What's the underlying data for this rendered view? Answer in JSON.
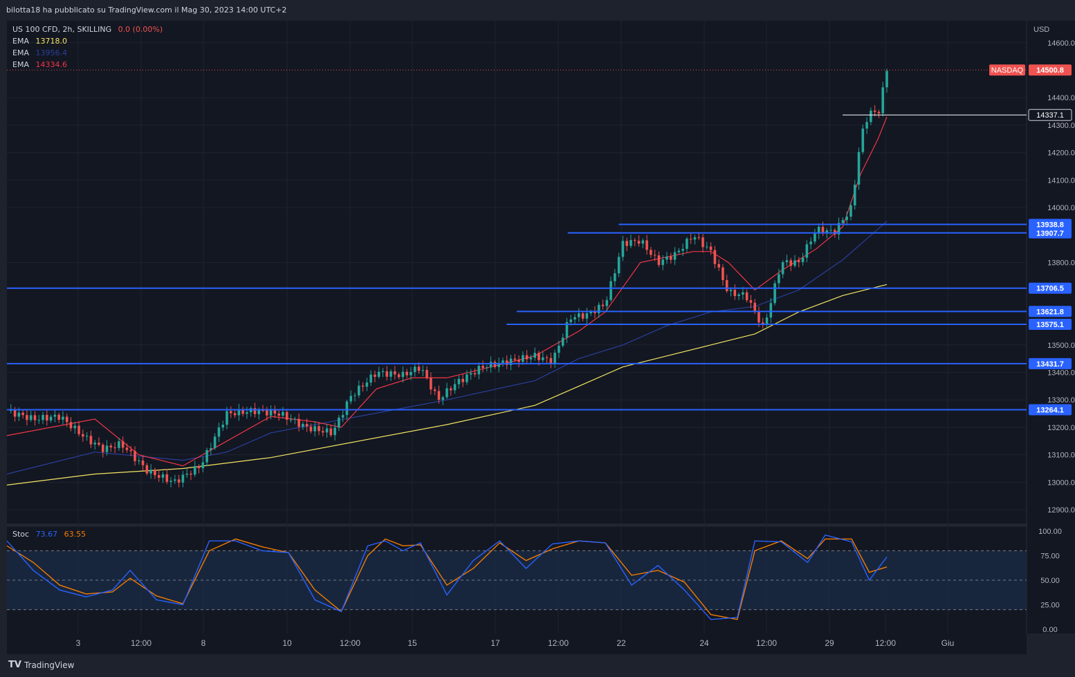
{
  "header": {
    "published_by": "bilotta18 ha pubblicato su TradingView.com il Mag 30, 2023 14:00 UTC+2"
  },
  "legend": {
    "symbol": "US 100 CFD, 2h, SKILLING",
    "change": "0.0 (0.00%)",
    "ema1": {
      "label": "EMA",
      "value": "13718.0",
      "color": "#f5e663"
    },
    "ema2": {
      "label": "EMA",
      "value": "13956.4",
      "color": "#2a3f9a"
    },
    "ema3": {
      "label": "EMA",
      "value": "14334.6",
      "color": "#f23645"
    }
  },
  "stoch_legend": {
    "label": "Stoc",
    "k": "73.67",
    "d": "63.55"
  },
  "footer": {
    "logo": "TradingView"
  },
  "colors": {
    "up": "#26a69a",
    "down": "#ef5350",
    "level": "#2962ff",
    "ema_fast": "#f23645",
    "ema_mid": "#2a3f9a",
    "ema_slow": "#f5e663",
    "stoch_k": "#2962ff",
    "stoch_d": "#f57c00"
  },
  "chart_data": {
    "type": "candlestick",
    "currency": "USD",
    "y_ticks": [
      "14600.0",
      "14400.0",
      "14300.0",
      "14200.0",
      "14100.0",
      "14000.0",
      "13800.0",
      "13500.0",
      "13400.0",
      "13300.0",
      "13200.0",
      "13100.0",
      "13000.0",
      "12900.0"
    ],
    "x_ticks": [
      "3",
      "12:00",
      "8",
      "10",
      "12:00",
      "15",
      "17",
      "12:00",
      "22",
      "24",
      "12:00",
      "29",
      "12:00",
      "Giu"
    ],
    "ylim": [
      12850,
      14680
    ],
    "last_price": {
      "label": "NASDAQ",
      "value": 14500.8
    },
    "marker": {
      "value": 14337.1
    },
    "levels": [
      {
        "value": 13938.8,
        "label": "13938.8",
        "from": 0.6
      },
      {
        "value": 13907.7,
        "label": "13907.7",
        "from": 0.55
      },
      {
        "value": 13706.5,
        "label": "13706.5",
        "from": 0
      },
      {
        "value": 13621.8,
        "label": "13621.8",
        "from": 0.5
      },
      {
        "value": 13575.1,
        "label": "13575.1",
        "from": 0.49
      },
      {
        "value": 13431.7,
        "label": "13431.7",
        "from": 0
      },
      {
        "value": 13264.1,
        "label": "13264.1",
        "from": 0
      }
    ],
    "price_path": [
      [
        0,
        13260
      ],
      [
        0.03,
        13230
      ],
      [
        0.06,
        13240
      ],
      [
        0.09,
        13160
      ],
      [
        0.11,
        13120
      ],
      [
        0.13,
        13140
      ],
      [
        0.16,
        13040
      ],
      [
        0.19,
        13000
      ],
      [
        0.22,
        13060
      ],
      [
        0.25,
        13250
      ],
      [
        0.28,
        13260
      ],
      [
        0.31,
        13250
      ],
      [
        0.34,
        13200
      ],
      [
        0.37,
        13180
      ],
      [
        0.39,
        13310
      ],
      [
        0.42,
        13400
      ],
      [
        0.45,
        13390
      ],
      [
        0.47,
        13420
      ],
      [
        0.49,
        13300
      ],
      [
        0.51,
        13360
      ],
      [
        0.54,
        13420
      ],
      [
        0.57,
        13440
      ],
      [
        0.6,
        13460
      ],
      [
        0.62,
        13440
      ],
      [
        0.64,
        13600
      ],
      [
        0.66,
        13610
      ],
      [
        0.68,
        13650
      ],
      [
        0.7,
        13870
      ],
      [
        0.72,
        13880
      ],
      [
        0.74,
        13800
      ],
      [
        0.76,
        13830
      ],
      [
        0.78,
        13900
      ],
      [
        0.8,
        13840
      ],
      [
        0.82,
        13690
      ],
      [
        0.84,
        13680
      ],
      [
        0.86,
        13560
      ],
      [
        0.88,
        13800
      ],
      [
        0.9,
        13800
      ],
      [
        0.92,
        13920
      ],
      [
        0.94,
        13910
      ],
      [
        0.96,
        14000
      ],
      [
        0.97,
        14250
      ],
      [
        0.98,
        14350
      ],
      [
        0.99,
        14340
      ],
      [
        1.0,
        14500
      ]
    ],
    "ema_fast": [
      [
        0,
        13170
      ],
      [
        0.1,
        13230
      ],
      [
        0.15,
        13100
      ],
      [
        0.2,
        13060
      ],
      [
        0.25,
        13150
      ],
      [
        0.3,
        13240
      ],
      [
        0.35,
        13220
      ],
      [
        0.38,
        13200
      ],
      [
        0.42,
        13340
      ],
      [
        0.46,
        13380
      ],
      [
        0.5,
        13380
      ],
      [
        0.55,
        13420
      ],
      [
        0.6,
        13460
      ],
      [
        0.65,
        13550
      ],
      [
        0.68,
        13620
      ],
      [
        0.72,
        13800
      ],
      [
        0.78,
        13840
      ],
      [
        0.8,
        13840
      ],
      [
        0.82,
        13800
      ],
      [
        0.85,
        13700
      ],
      [
        0.88,
        13770
      ],
      [
        0.92,
        13850
      ],
      [
        0.95,
        13930
      ],
      [
        0.97,
        14120
      ],
      [
        0.99,
        14250
      ],
      [
        1.0,
        14330
      ]
    ],
    "ema_mid": [
      [
        0,
        13030
      ],
      [
        0.1,
        13110
      ],
      [
        0.2,
        13080
      ],
      [
        0.25,
        13110
      ],
      [
        0.3,
        13180
      ],
      [
        0.4,
        13240
      ],
      [
        0.5,
        13300
      ],
      [
        0.6,
        13370
      ],
      [
        0.65,
        13450
      ],
      [
        0.7,
        13500
      ],
      [
        0.75,
        13570
      ],
      [
        0.8,
        13620
      ],
      [
        0.85,
        13640
      ],
      [
        0.9,
        13700
      ],
      [
        0.95,
        13810
      ],
      [
        1.0,
        13950
      ]
    ],
    "ema_slow": [
      [
        0,
        12990
      ],
      [
        0.1,
        13030
      ],
      [
        0.2,
        13050
      ],
      [
        0.3,
        13090
      ],
      [
        0.4,
        13150
      ],
      [
        0.5,
        13210
      ],
      [
        0.6,
        13280
      ],
      [
        0.65,
        13350
      ],
      [
        0.7,
        13420
      ],
      [
        0.75,
        13460
      ],
      [
        0.8,
        13500
      ],
      [
        0.85,
        13540
      ],
      [
        0.9,
        13620
      ],
      [
        0.95,
        13680
      ],
      [
        1.0,
        13720
      ]
    ],
    "stochastic": {
      "levels": [
        100,
        75,
        50,
        25,
        0
      ],
      "labels": [
        "100.00",
        "75.00",
        "50.00",
        "25.00",
        "0.00"
      ],
      "k": [
        [
          0,
          90
        ],
        [
          0.03,
          60
        ],
        [
          0.06,
          40
        ],
        [
          0.09,
          33
        ],
        [
          0.12,
          40
        ],
        [
          0.14,
          60
        ],
        [
          0.17,
          30
        ],
        [
          0.2,
          25
        ],
        [
          0.23,
          90
        ],
        [
          0.26,
          90
        ],
        [
          0.29,
          80
        ],
        [
          0.32,
          78
        ],
        [
          0.35,
          30
        ],
        [
          0.38,
          18
        ],
        [
          0.41,
          85
        ],
        [
          0.43,
          90
        ],
        [
          0.45,
          80
        ],
        [
          0.47,
          88
        ],
        [
          0.5,
          35
        ],
        [
          0.53,
          70
        ],
        [
          0.56,
          90
        ],
        [
          0.59,
          62
        ],
        [
          0.62,
          87
        ],
        [
          0.65,
          90
        ],
        [
          0.68,
          88
        ],
        [
          0.71,
          45
        ],
        [
          0.74,
          65
        ],
        [
          0.77,
          40
        ],
        [
          0.8,
          10
        ],
        [
          0.83,
          12
        ],
        [
          0.85,
          90
        ],
        [
          0.88,
          89
        ],
        [
          0.91,
          68
        ],
        [
          0.93,
          96
        ],
        [
          0.96,
          89
        ],
        [
          0.98,
          50
        ],
        [
          1.0,
          73.67
        ]
      ],
      "d": [
        [
          0,
          85
        ],
        [
          0.03,
          68
        ],
        [
          0.06,
          45
        ],
        [
          0.09,
          36
        ],
        [
          0.12,
          38
        ],
        [
          0.14,
          52
        ],
        [
          0.17,
          34
        ],
        [
          0.2,
          26
        ],
        [
          0.23,
          80
        ],
        [
          0.26,
          92
        ],
        [
          0.29,
          84
        ],
        [
          0.32,
          78
        ],
        [
          0.35,
          40
        ],
        [
          0.38,
          18
        ],
        [
          0.41,
          75
        ],
        [
          0.43,
          92
        ],
        [
          0.45,
          85
        ],
        [
          0.47,
          86
        ],
        [
          0.5,
          45
        ],
        [
          0.53,
          62
        ],
        [
          0.56,
          88
        ],
        [
          0.59,
          70
        ],
        [
          0.62,
          82
        ],
        [
          0.65,
          90
        ],
        [
          0.68,
          88
        ],
        [
          0.71,
          55
        ],
        [
          0.74,
          60
        ],
        [
          0.77,
          48
        ],
        [
          0.8,
          15
        ],
        [
          0.83,
          10
        ],
        [
          0.85,
          80
        ],
        [
          0.88,
          90
        ],
        [
          0.91,
          72
        ],
        [
          0.93,
          92
        ],
        [
          0.96,
          92
        ],
        [
          0.98,
          58
        ],
        [
          1.0,
          63.55
        ]
      ]
    }
  }
}
